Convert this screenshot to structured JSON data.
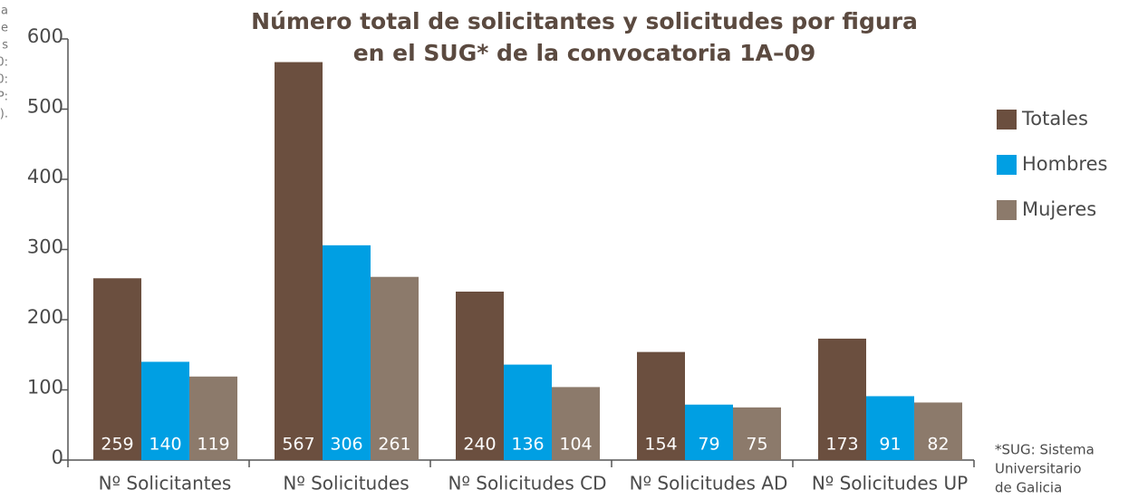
{
  "chart_data": {
    "type": "bar",
    "title": [
      "Número total de solicitantes y solicitudes por figura",
      "en el SUG* de la convocatoria 1A–09"
    ],
    "categories": [
      "Nº Solicitantes",
      "Nº Solicitudes",
      "Nº Solicitudes CD",
      "Nº Solicitudes AD",
      "Nº Solicitudes UP"
    ],
    "series": [
      {
        "name": "Totales",
        "color": "#6b4f3f",
        "values": [
          259,
          567,
          240,
          154,
          173
        ]
      },
      {
        "name": "Hombres",
        "color": "#009fe3",
        "values": [
          140,
          306,
          136,
          79,
          91
        ]
      },
      {
        "name": "Mujeres",
        "color": "#8c7a6b",
        "values": [
          119,
          261,
          104,
          75,
          82
        ]
      }
    ],
    "ylim": [
      0,
      600
    ],
    "yticks": [
      0,
      100,
      200,
      300,
      400,
      500,
      600
    ],
    "legend": "right",
    "footnote": [
      "*SUG: Sistema",
      "Universitario",
      "de Galicia"
    ],
    "page_fragments": [
      "a",
      "e",
      "s",
      "0:",
      "0:",
      "P:",
      "0)."
    ]
  }
}
